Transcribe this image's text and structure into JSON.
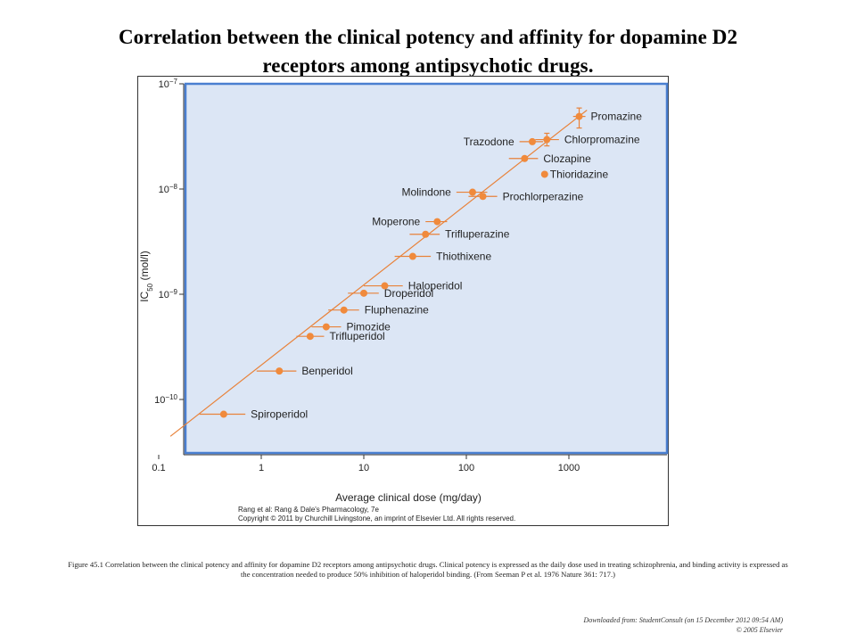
{
  "slide": {
    "title_line1": "Correlation between the clinical potency and affinity for dopamine D2",
    "title_line2": "receptors among antipsychotic drugs.",
    "caption": "Figure 45.1 Correlation between the clinical potency and affinity for dopamine D2 receptors among antipsychotic drugs. Clinical potency is expressed as the daily dose used in treating schizophrenia, and binding activity is expressed as the concentration needed to produce 50% inhibition of haloperidol binding. (From Seeman P et al. 1976 Nature 361: 717.)",
    "footer_line1": "Downloaded from: StudentConsult (on 15 December 2012 09:54 AM)",
    "footer_line2": "© 2005 Elsevier"
  },
  "figure": {
    "credit_line1": "Rang et al: Rang & Dale's Pharmacology, 7e",
    "credit_line2": "Copyright © 2011 by Churchill Livingstone, an imprint of Elsevier Ltd. All rights reserved."
  },
  "chart_data": {
    "type": "scatter",
    "xlabel": "Average clinical dose (mg/day)",
    "ylabel_main": "IC",
    "ylabel_sub": "50",
    "ylabel_unit": " (mol/l)",
    "x_scale": "log",
    "y_scale": "log",
    "xlim": [
      0.1,
      10000
    ],
    "ylim_log10": [
      -10.5,
      -7
    ],
    "x_ticks": [
      {
        "value": 0.1,
        "label": "0.1"
      },
      {
        "value": 1,
        "label": "1"
      },
      {
        "value": 10,
        "label": "10"
      },
      {
        "value": 100,
        "label": "100"
      },
      {
        "value": 1000,
        "label": "1000"
      }
    ],
    "y_ticks": [
      {
        "log10": -7,
        "base": "10",
        "exp": "−7"
      },
      {
        "log10": -8,
        "base": "10",
        "exp": "−8"
      },
      {
        "log10": -9,
        "base": "10",
        "exp": "−9"
      },
      {
        "log10": -10,
        "base": "10",
        "exp": "−10"
      }
    ],
    "fit_line": {
      "x": [
        0.13,
        1500
      ],
      "log10_y": [
        -10.35,
        -7.25
      ]
    },
    "colors": {
      "points": "#f08a3c",
      "line": "#e8823a",
      "panel": "#dce6f5",
      "panel_border": "#4a7fd0"
    },
    "points": [
      {
        "name": "Promazine",
        "x": 1260,
        "log10_y": -7.31,
        "xerr": [
          1100,
          1450
        ],
        "yerr_log": [
          -7.23,
          -7.42
        ],
        "label_side": "right"
      },
      {
        "name": "Chlorpromazine",
        "x": 610,
        "log10_y": -7.53,
        "xerr": [
          470,
          800
        ],
        "yerr_log": [
          -7.47,
          -7.59
        ],
        "label_side": "right"
      },
      {
        "name": "Trazodone",
        "x": 440,
        "log10_y": -7.55,
        "xerr": [
          330,
          560
        ],
        "label_side": "left"
      },
      {
        "name": "Clozapine",
        "x": 370,
        "log10_y": -7.71,
        "xerr": [
          260,
          500
        ],
        "label_side": "right"
      },
      {
        "name": "Thioridazine",
        "x": 580,
        "log10_y": -7.86,
        "label_side": "right"
      },
      {
        "name": "Molindone",
        "x": 115,
        "log10_y": -8.03,
        "xerr": [
          80,
          160
        ],
        "label_side": "left"
      },
      {
        "name": "Prochlorperazine",
        "x": 145,
        "log10_y": -8.07,
        "xerr": [
          105,
          200
        ],
        "label_side": "right"
      },
      {
        "name": "Moperone",
        "x": 52,
        "log10_y": -8.31,
        "xerr": [
          40,
          65
        ],
        "label_side": "left"
      },
      {
        "name": "Trifluperazine",
        "x": 40,
        "log10_y": -8.43,
        "xerr": [
          28,
          55
        ],
        "label_side": "right"
      },
      {
        "name": "Thiothixene",
        "x": 30,
        "log10_y": -8.64,
        "xerr": [
          20,
          45
        ],
        "label_side": "right"
      },
      {
        "name": "Haloperidol",
        "x": 16,
        "log10_y": -8.92,
        "xerr": [
          10,
          24
        ],
        "label_side": "right"
      },
      {
        "name": "Droperidol",
        "x": 10,
        "log10_y": -8.99,
        "xerr": [
          7,
          14
        ],
        "label_side": "right"
      },
      {
        "name": "Fluphenazine",
        "x": 6.4,
        "log10_y": -9.15,
        "xerr": [
          4.5,
          9
        ],
        "label_side": "right"
      },
      {
        "name": "Pimozide",
        "x": 4.3,
        "log10_y": -9.31,
        "xerr": [
          3.1,
          6
        ],
        "label_side": "right"
      },
      {
        "name": "Trifluperidol",
        "x": 3.0,
        "log10_y": -9.4,
        "xerr": [
          2.2,
          4.1
        ],
        "label_side": "right"
      },
      {
        "name": "Benperidol",
        "x": 1.5,
        "log10_y": -9.73,
        "xerr": [
          0.9,
          2.2
        ],
        "label_side": "right"
      },
      {
        "name": "Spiroperidol",
        "x": 0.43,
        "log10_y": -10.14,
        "xerr": [
          0.25,
          0.7
        ],
        "label_side": "right"
      }
    ]
  }
}
